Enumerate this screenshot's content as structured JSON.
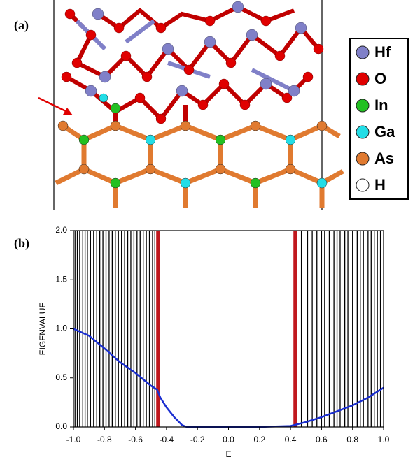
{
  "panel_labels": [
    "(a)",
    "(b)"
  ],
  "legend": [
    {
      "name": "Hf",
      "color": "#8080c8"
    },
    {
      "name": "O",
      "color": "#e00000"
    },
    {
      "name": "In",
      "color": "#22c022"
    },
    {
      "name": "Ga",
      "color": "#22dde6"
    },
    {
      "name": "As",
      "color": "#e07a30"
    },
    {
      "name": "H",
      "color": "#ffffff"
    }
  ],
  "chart_data": {
    "type": "line",
    "xlabel": "E",
    "ylabel": "EIGENVALUE",
    "xlim": [
      -1,
      1
    ],
    "ylim": [
      0,
      2
    ],
    "xticks": [
      {
        "value": -1,
        "label": "-1.0"
      },
      {
        "value": -0.8,
        "label": "-0.8"
      },
      {
        "value": -0.6,
        "label": "-0.6"
      },
      {
        "value": -0.4,
        "label": "-0.4"
      },
      {
        "value": -0.2,
        "label": "-0.2"
      },
      {
        "value": 0,
        "label": "0.0"
      },
      {
        "value": 0.2,
        "label": "0.2"
      },
      {
        "value": 0.4,
        "label": "0.4"
      },
      {
        "value": 0.6,
        "label": "0.6"
      },
      {
        "value": 0.8,
        "label": "0.8"
      },
      {
        "value": 1,
        "label": "1.0"
      }
    ],
    "yticks": [
      {
        "value": 0,
        "label": "0.0"
      },
      {
        "value": 0.5,
        "label": "0.5"
      },
      {
        "value": 1,
        "label": "1.0"
      },
      {
        "value": 1.5,
        "label": "1.5"
      },
      {
        "value": 2,
        "label": "2.0"
      }
    ],
    "state_height": 2,
    "state_lines": [
      {
        "color": "#000000",
        "x": [
          -0.99,
          -0.975,
          -0.96,
          -0.94,
          -0.925,
          -0.91,
          -0.89,
          -0.87,
          -0.85,
          -0.83,
          -0.81,
          -0.79,
          -0.77,
          -0.75,
          -0.73,
          -0.71,
          -0.69,
          -0.67,
          -0.65,
          -0.63,
          -0.61,
          -0.59,
          -0.57,
          -0.55,
          -0.53,
          -0.51,
          -0.49,
          -0.475,
          0.47,
          0.51,
          0.54,
          0.57,
          0.6,
          0.62,
          0.65,
          0.68,
          0.7,
          0.72,
          0.75,
          0.77,
          0.8,
          0.83,
          0.85,
          0.87,
          0.9,
          0.92,
          0.94,
          0.96,
          0.98
        ]
      },
      {
        "color": "#c0181e",
        "x": [
          -0.455,
          0.43
        ]
      }
    ],
    "series": [
      {
        "color": "#1a2ed0",
        "x": [
          -1,
          -0.9,
          -0.8,
          -0.7,
          -0.6,
          -0.5,
          -0.46,
          -0.44,
          -0.4,
          -0.35,
          -0.3,
          -0.27,
          -0.2,
          0,
          0.2,
          0.4,
          0.5,
          0.6,
          0.7,
          0.8,
          0.9,
          1
        ],
        "values": [
          1,
          0.93,
          0.8,
          0.66,
          0.55,
          0.42,
          0.38,
          0.3,
          0.2,
          0.1,
          0.02,
          0,
          0,
          0,
          0,
          0.01,
          0.05,
          0.1,
          0.16,
          0.22,
          0.3,
          0.4
        ]
      }
    ]
  }
}
